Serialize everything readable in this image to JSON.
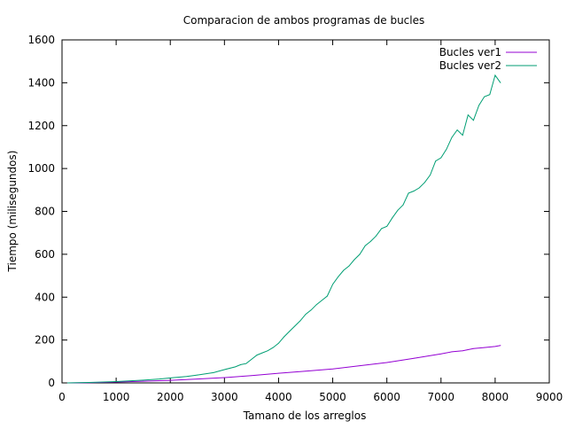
{
  "chart_data": {
    "type": "line",
    "title": "Comparacion de ambos programas de bucles",
    "xlabel": "Tamano de los arreglos",
    "ylabel": "Tiempo (milisegundos)",
    "xlim": [
      0,
      9000
    ],
    "ylim": [
      0,
      1600
    ],
    "xticks": [
      0,
      1000,
      2000,
      3000,
      4000,
      5000,
      6000,
      7000,
      8000,
      9000
    ],
    "yticks": [
      0,
      200,
      400,
      600,
      800,
      1000,
      1200,
      1400,
      1600
    ],
    "grid": false,
    "legend_position": "top-right",
    "series": [
      {
        "name": "Bucles ver1",
        "color": "#9400d3",
        "x": [
          100,
          500,
          1000,
          1500,
          2000,
          2500,
          3000,
          3500,
          4000,
          4500,
          5000,
          5500,
          6000,
          6500,
          7000,
          7200,
          7400,
          7600,
          7800,
          8000,
          8100
        ],
        "y": [
          0,
          1,
          4,
          8,
          12,
          18,
          25,
          34,
          45,
          55,
          65,
          80,
          95,
          115,
          135,
          145,
          150,
          160,
          165,
          170,
          175
        ]
      },
      {
        "name": "Bucles ver2",
        "color": "#009e73",
        "x": [
          100,
          500,
          1000,
          1500,
          1800,
          2000,
          2300,
          2500,
          2800,
          3000,
          3200,
          3300,
          3400,
          3500,
          3600,
          3700,
          3800,
          3900,
          4000,
          4100,
          4200,
          4300,
          4400,
          4500,
          4600,
          4700,
          4800,
          4900,
          5000,
          5100,
          5200,
          5300,
          5400,
          5500,
          5600,
          5700,
          5800,
          5900,
          6000,
          6100,
          6200,
          6300,
          6400,
          6500,
          6600,
          6700,
          6800,
          6900,
          7000,
          7100,
          7200,
          7300,
          7400,
          7500,
          7600,
          7700,
          7800,
          7900,
          8000,
          8100
        ],
        "y": [
          0,
          2,
          6,
          13,
          18,
          23,
          30,
          37,
          48,
          62,
          75,
          85,
          90,
          110,
          130,
          140,
          150,
          165,
          185,
          215,
          240,
          265,
          290,
          320,
          340,
          365,
          385,
          405,
          460,
          495,
          525,
          545,
          575,
          600,
          640,
          660,
          685,
          720,
          730,
          770,
          805,
          830,
          885,
          895,
          910,
          935,
          970,
          1035,
          1050,
          1090,
          1145,
          1180,
          1155,
          1250,
          1225,
          1295,
          1335,
          1345,
          1435,
          1400
        ]
      }
    ]
  }
}
